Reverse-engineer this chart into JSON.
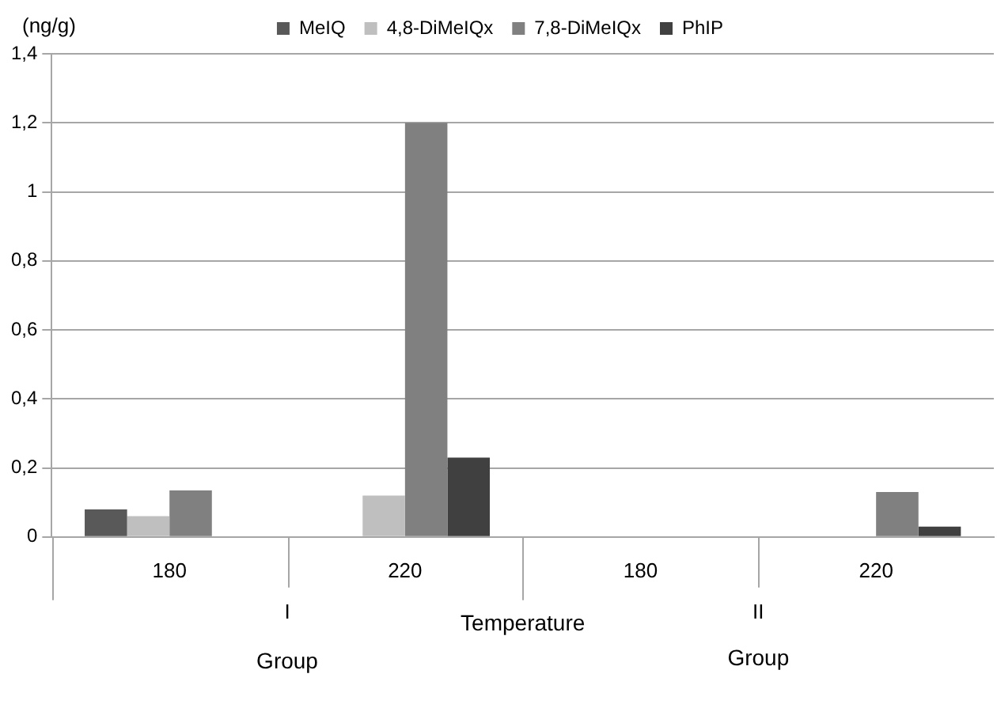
{
  "chart_data": {
    "type": "bar",
    "ylabel": "(ng/g)",
    "xlabel": "Temperature",
    "categories": [
      "180",
      "220",
      "180",
      "220"
    ],
    "series": [
      {
        "name": "MeIQ",
        "color": "#595959",
        "values": [
          0.08,
          0,
          0,
          0
        ]
      },
      {
        "name": "4,8-DiMeIQx",
        "color": "#bfbfbf",
        "values": [
          0.06,
          0.12,
          0,
          0
        ]
      },
      {
        "name": "7,8-DiMeIQx",
        "color": "#808080",
        "values": [
          0.135,
          1.2,
          0,
          0.13
        ]
      },
      {
        "name": "PhIP",
        "color": "#404040",
        "values": [
          0,
          0.23,
          0,
          0.03
        ]
      }
    ],
    "ylim": [
      0,
      1.4
    ],
    "yticks": [
      0,
      {
        "value": 0.2,
        "label": "0,2"
      },
      {
        "value": 0.4,
        "label": "0,4"
      },
      {
        "value": 0.6,
        "label": "0,6"
      },
      {
        "value": 0.8,
        "label": "0,8"
      },
      1,
      {
        "value": 1.2,
        "label": "1,2"
      },
      {
        "value": 1.4,
        "label": "1,4"
      }
    ],
    "grid": "y",
    "legend": "top",
    "annotations": [
      "I",
      "II",
      "Group",
      "Group"
    ]
  }
}
